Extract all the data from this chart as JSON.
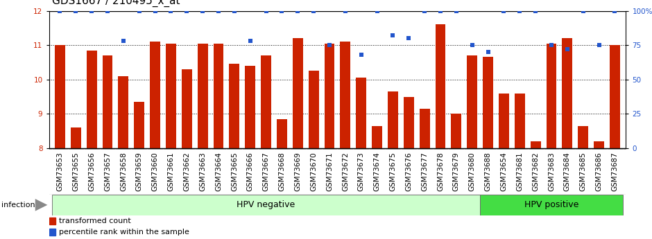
{
  "title": "GDS1667 / 210495_x_at",
  "categories": [
    "GSM73653",
    "GSM73655",
    "GSM73656",
    "GSM73657",
    "GSM73658",
    "GSM73659",
    "GSM73660",
    "GSM73661",
    "GSM73662",
    "GSM73663",
    "GSM73664",
    "GSM73665",
    "GSM73666",
    "GSM73667",
    "GSM73668",
    "GSM73669",
    "GSM73670",
    "GSM73671",
    "GSM73672",
    "GSM73673",
    "GSM73674",
    "GSM73675",
    "GSM73676",
    "GSM73677",
    "GSM73678",
    "GSM73679",
    "GSM73680",
    "GSM73688",
    "GSM73654",
    "GSM73681",
    "GSM73682",
    "GSM73683",
    "GSM73684",
    "GSM73685",
    "GSM73686",
    "GSM73687"
  ],
  "bar_values": [
    11.0,
    8.6,
    10.85,
    10.7,
    10.1,
    9.35,
    11.1,
    11.05,
    10.3,
    11.05,
    11.05,
    10.45,
    10.4,
    10.7,
    8.85,
    11.2,
    10.25,
    11.05,
    11.1,
    10.05,
    8.65,
    9.65,
    9.5,
    9.15,
    11.6,
    9.0,
    10.7,
    10.65,
    9.6,
    9.6,
    8.2,
    11.05,
    11.2,
    8.65,
    8.2,
    11.0
  ],
  "percentile_values": [
    100,
    100,
    100,
    100,
    78,
    100,
    100,
    100,
    100,
    100,
    100,
    100,
    78,
    100,
    100,
    100,
    100,
    75,
    100,
    68,
    100,
    82,
    80,
    100,
    100,
    100,
    75,
    70,
    100,
    100,
    100,
    75,
    72,
    100,
    75,
    100
  ],
  "bar_color": "#cc2200",
  "scatter_color": "#2255cc",
  "ylim_left": [
    8,
    12
  ],
  "ylim_right": [
    0,
    100
  ],
  "yticks_left": [
    8,
    9,
    10,
    11,
    12
  ],
  "yticks_right": [
    0,
    25,
    50,
    75,
    100
  ],
  "ytick_labels_right": [
    "0",
    "25",
    "50",
    "75",
    "100%"
  ],
  "hpv_negative_count": 27,
  "hpv_negative_label": "HPV negative",
  "hpv_positive_label": "HPV positive",
  "infection_label": "infection",
  "legend_bar_label": "transformed count",
  "legend_scatter_label": "percentile rank within the sample",
  "bg_hpv_neg": "#ccffcc",
  "bg_hpv_pos": "#44dd44",
  "bg_tick": "#d0d0d0",
  "title_fontsize": 11,
  "tick_fontsize": 7.5,
  "legend_fontsize": 8
}
